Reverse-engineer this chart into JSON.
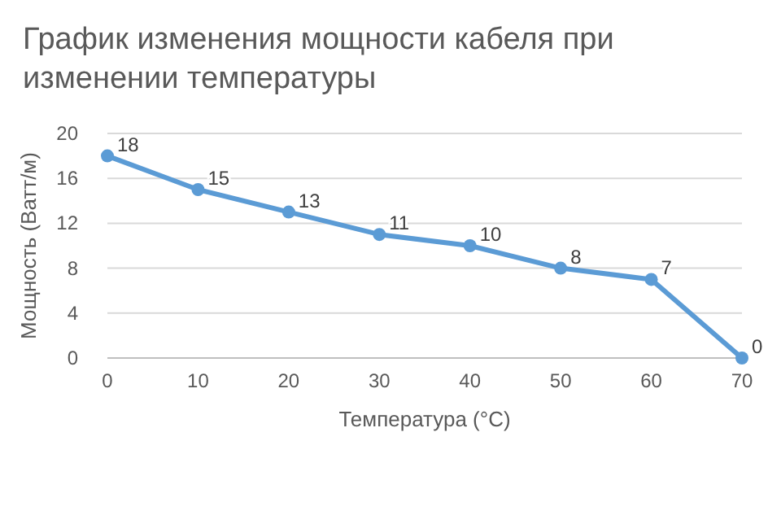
{
  "chart_data": {
    "type": "line",
    "title": "График изменения мощности кабеля при изменении температуры",
    "xlabel": "Температура (°C)",
    "ylabel": "Мощность (Ватт/м)",
    "x": [
      0,
      10,
      20,
      30,
      40,
      50,
      60,
      70
    ],
    "series": [
      {
        "color": "#5b9bd5",
        "values": [
          18,
          15,
          13,
          11,
          10,
          8,
          7,
          0
        ]
      }
    ],
    "xlim": [
      0,
      70
    ],
    "xticks": [
      0,
      10,
      20,
      30,
      40,
      50,
      60,
      70
    ],
    "ylim": [
      0,
      20
    ],
    "yticks": [
      0,
      4,
      8,
      12,
      16,
      20
    ],
    "grid": "y",
    "marker": "circle",
    "line_style": "solid",
    "data_labels": true
  }
}
